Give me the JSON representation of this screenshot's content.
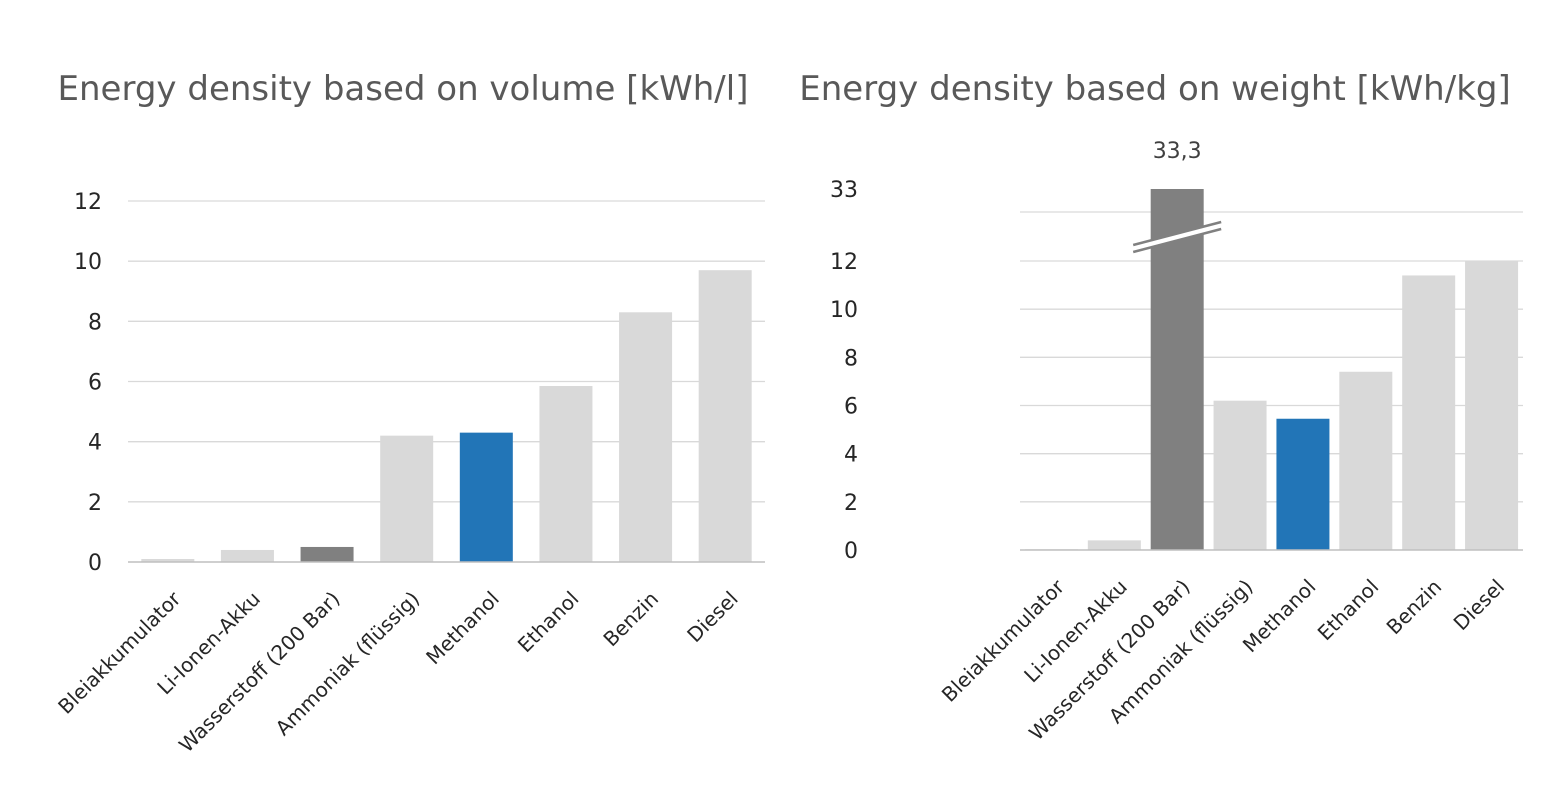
{
  "chart_data": [
    {
      "type": "bar",
      "title": "Energy density based on volume [kWh/l]",
      "categories": [
        "Bleiakkumulator",
        "Li-Ionen-Akku",
        "Wasserstoff (200 Bar)",
        "Ammoniak (flüssig)",
        "Methanol",
        "Ethanol",
        "Benzin",
        "Diesel"
      ],
      "values": [
        0.1,
        0.4,
        0.5,
        4.2,
        4.3,
        5.85,
        8.3,
        9.7
      ],
      "colors": [
        "#d9d9d9",
        "#d9d9d9",
        "#808080",
        "#d9d9d9",
        "#2275b7",
        "#d9d9d9",
        "#d9d9d9",
        "#d9d9d9"
      ],
      "ylim": [
        0,
        12
      ],
      "yticks": [
        "0",
        "2",
        "4",
        "6",
        "8",
        "10",
        "12"
      ],
      "grid": true
    },
    {
      "type": "bar",
      "title": "Energy density based on weight [kWh/kg]",
      "categories": [
        "Bleiakkumulator",
        "Li-Ionen-Akku",
        "Wasserstoff (200 Bar)",
        "Ammoniak (flüssig)",
        "Methanol",
        "Ethanol",
        "Benzin",
        "Diesel"
      ],
      "values": [
        0.03,
        0.4,
        33.3,
        6.2,
        5.45,
        7.4,
        11.4,
        12.0
      ],
      "colors": [
        "#d9d9d9",
        "#d9d9d9",
        "#808080",
        "#d9d9d9",
        "#2275b7",
        "#d9d9d9",
        "#d9d9d9",
        "#d9d9d9"
      ],
      "ylim": [
        0,
        12
      ],
      "yticks": [
        "0",
        "2",
        "4",
        "6",
        "8",
        "10",
        "12"
      ],
      "axis_break": true,
      "break_tick": "33",
      "data_labels": [
        {
          "index": 2,
          "text": "33,3"
        }
      ],
      "grid": true
    }
  ]
}
